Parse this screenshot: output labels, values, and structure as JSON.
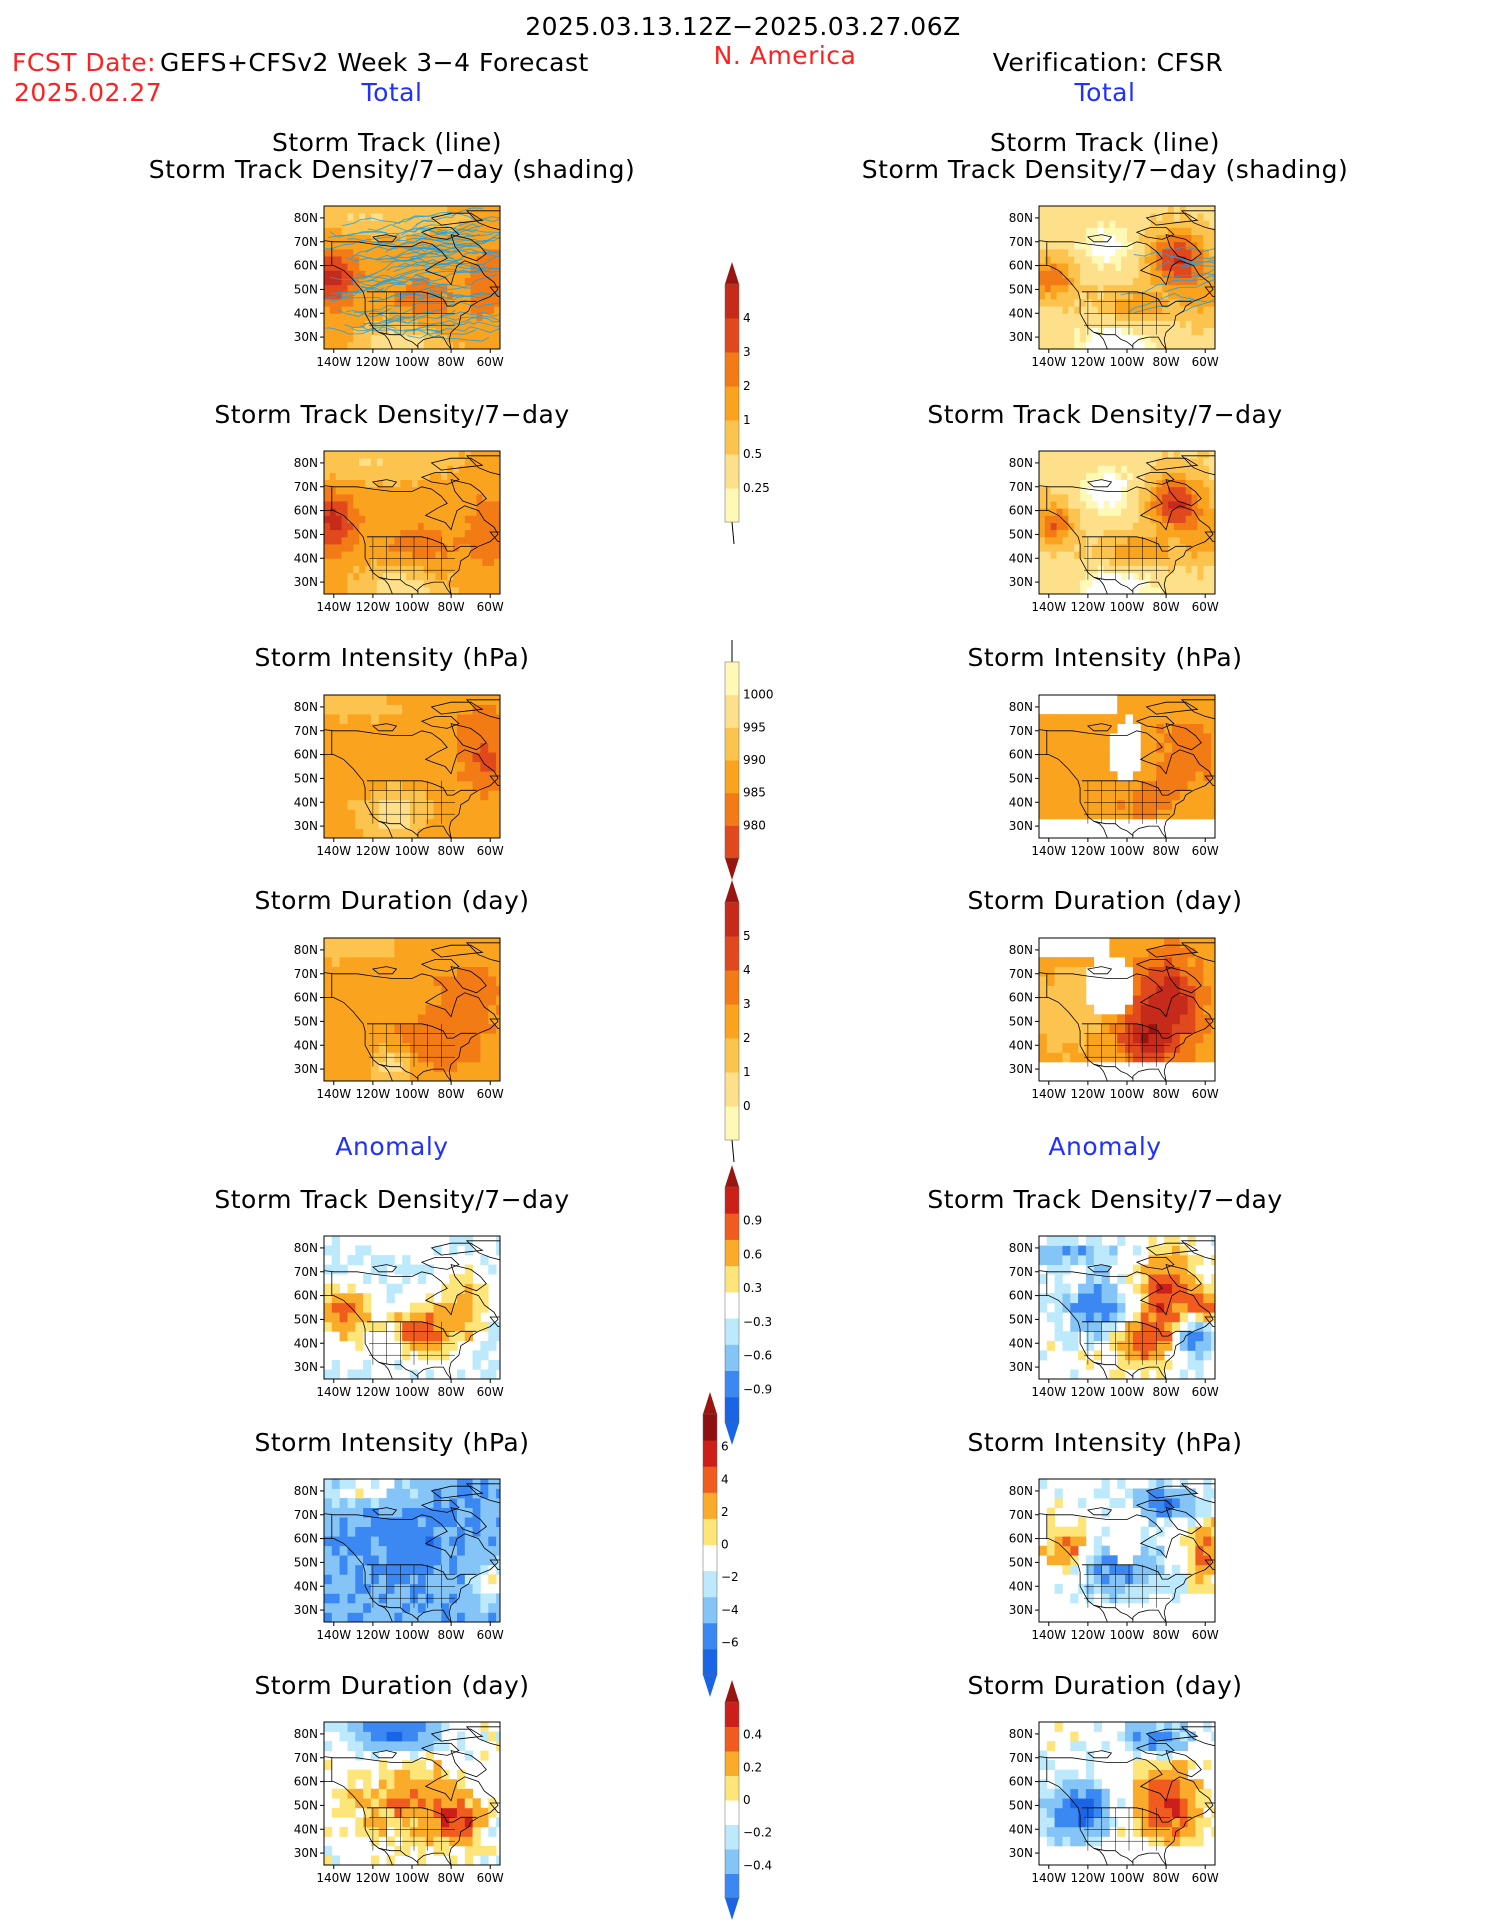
{
  "header": {
    "period": "2025.03.13.12Z−2025.03.27.06Z",
    "fcst_date_label": "FCST Date:",
    "fcst_date": "2025.02.27",
    "model": "GEFS+CFSv2 Week 3−4 Forecast",
    "region": "N. America",
    "verification": "Verification: CFSR",
    "left_total": "Total",
    "right_total": "Total",
    "left_anomaly": "Anomaly",
    "right_anomaly": "Anomaly"
  },
  "panel_titles": {
    "track_line": "Storm Track (line)",
    "track_shading": "Storm Track Density/7−day (shading)",
    "density": "Storm Track Density/7−day",
    "intensity": "Storm Intensity (hPa)",
    "duration": "Storm Duration (day)"
  },
  "axes": {
    "lat_ticks": [
      "80N",
      "70N",
      "60N",
      "50N",
      "40N",
      "30N"
    ],
    "lon_ticks": [
      "140W",
      "120W",
      "100W",
      "80W",
      "60W"
    ],
    "lat_range": [
      25,
      85
    ],
    "lon_range": [
      -145,
      -55
    ]
  },
  "colors": {
    "palette_total": [
      "#fff9b8",
      "#fee08a",
      "#fcc44e",
      "#f9a31e",
      "#f27b15",
      "#e0491d",
      "#c62a1a",
      "#99150f"
    ],
    "palette_anom": [
      "#1965e6",
      "#3b88f2",
      "#84c4f7",
      "#bce9fb",
      "#ffffff",
      "#fee579",
      "#fbab2a",
      "#f05c1e",
      "#cc1f1a",
      "#8f1010"
    ],
    "track_line": "#1ca0e6"
  },
  "chart_data": [
    {
      "type": "heatmap",
      "id": "colorbar_density_total",
      "ticks": [
        "0.25",
        "0.5",
        "1",
        "2",
        "3",
        "4"
      ]
    },
    {
      "type": "heatmap",
      "id": "colorbar_intensity_total",
      "ticks": [
        "1000",
        "995",
        "990",
        "985",
        "980"
      ]
    },
    {
      "type": "heatmap",
      "id": "colorbar_duration_total",
      "ticks": [
        "0",
        "1",
        "2",
        "3",
        "4",
        "5"
      ]
    },
    {
      "type": "heatmap",
      "id": "colorbar_density_anom",
      "ticks": [
        "−0.9",
        "−0.6",
        "−0.3",
        "0.3",
        "0.6",
        "0.9"
      ]
    },
    {
      "type": "heatmap",
      "id": "colorbar_intensity_anom",
      "ticks": [
        "−6",
        "−4",
        "−2",
        "0",
        "2",
        "4",
        "6"
      ]
    },
    {
      "type": "heatmap",
      "id": "colorbar_duration_anom",
      "ticks": [
        "−0.4",
        "−0.2",
        "0",
        "0.2",
        "0.4"
      ]
    }
  ]
}
